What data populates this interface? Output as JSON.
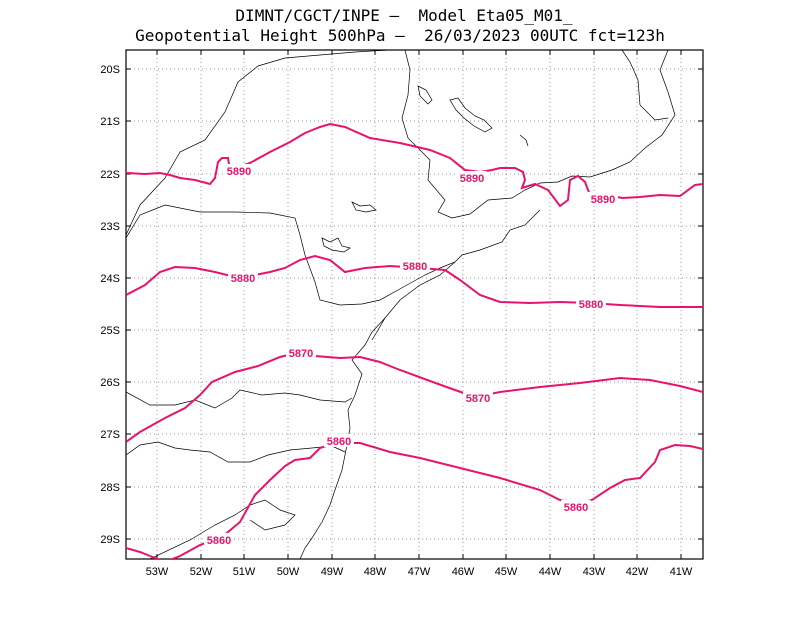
{
  "header": {
    "line1": "DIMNT/CGCT/INPE –  Model Eta05_M01_",
    "line2": "Geopotential Height 500hPa –  26/03/2023 00UTC fct=123h"
  },
  "axes": {
    "lat_labels": [
      "20S",
      "21S",
      "22S",
      "23S",
      "24S",
      "25S",
      "26S",
      "27S",
      "28S",
      "29S"
    ],
    "lon_labels": [
      "53W",
      "52W",
      "51W",
      "50W",
      "49W",
      "48W",
      "47W",
      "46W",
      "45W",
      "44W",
      "43W",
      "42W",
      "41W"
    ]
  },
  "colors": {
    "contour": "#e8136b",
    "coast": "#000000",
    "grid": "#999999"
  },
  "contours": [
    {
      "value": 5890,
      "label": "5890"
    },
    {
      "value": 5880,
      "label": "5880"
    },
    {
      "value": 5870,
      "label": "5870"
    },
    {
      "value": 5860,
      "label": "5860"
    }
  ]
}
